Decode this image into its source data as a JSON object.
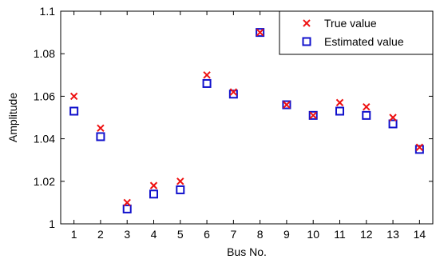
{
  "chart_data": {
    "type": "scatter",
    "xlabel": "Bus No.",
    "ylabel": "Amplitude",
    "xlim": [
      0.5,
      14.5
    ],
    "ylim": [
      1.0,
      1.1
    ],
    "x": [
      1,
      2,
      3,
      4,
      5,
      6,
      7,
      8,
      9,
      10,
      11,
      12,
      13,
      14
    ],
    "x_tick_labels": [
      "1",
      "2",
      "3",
      "4",
      "5",
      "6",
      "7",
      "8",
      "9",
      "10",
      "11",
      "12",
      "13",
      "14"
    ],
    "y_ticks": [
      1.0,
      1.02,
      1.04,
      1.06,
      1.08,
      1.1
    ],
    "y_tick_labels": [
      "1",
      "1.02",
      "1.04",
      "1.06",
      "1.08",
      "1.1"
    ],
    "grid": false,
    "legend_position": "top-right",
    "series": [
      {
        "name": "True value",
        "marker": "x",
        "color": "#ee1111",
        "values": [
          1.06,
          1.045,
          1.01,
          1.018,
          1.02,
          1.07,
          1.062,
          1.09,
          1.056,
          1.051,
          1.057,
          1.055,
          1.05,
          1.036
        ]
      },
      {
        "name": "Estimated value",
        "marker": "square",
        "color": "#1111cc",
        "values": [
          1.053,
          1.041,
          1.007,
          1.014,
          1.016,
          1.066,
          1.061,
          1.09,
          1.056,
          1.051,
          1.053,
          1.051,
          1.047,
          1.035
        ]
      }
    ]
  }
}
